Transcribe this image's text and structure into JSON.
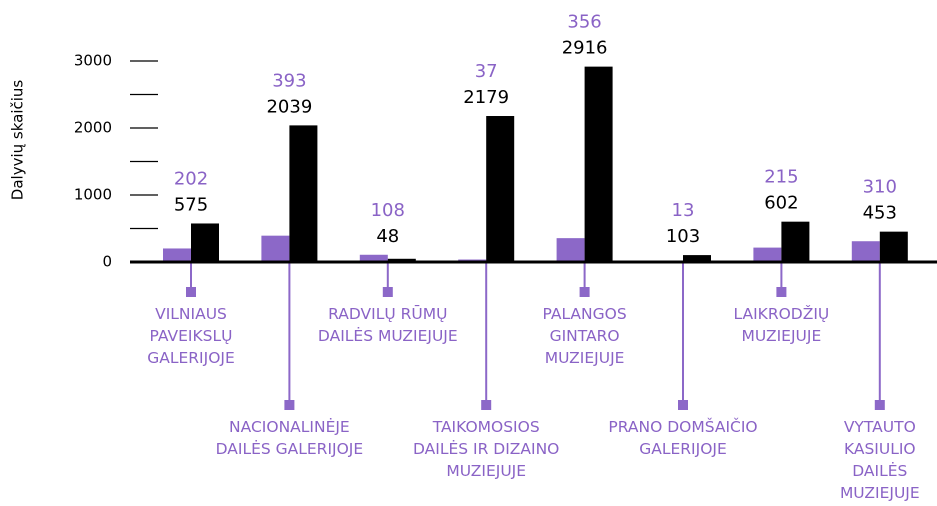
{
  "chart_data": {
    "type": "bar",
    "y_label": "Dalyvių skaičius",
    "categories": [
      "VILNIAUS PAVEIKSLŲ GALERIJOJE",
      "NACIONALINĖJE DAILĖS GALERIJOJE",
      "RADVILŲ RŪMŲ DAILĖS MUZIEJUJE",
      "TAIKOMOSIOS DAILĖS IR DIZAINO MUZIEJUJE",
      "PALANGOS GINTARO MUZIEJUJE",
      "PRANO DOMŠAIČIO GALERIJOJE",
      "LAIKRODŽIŲ MUZIEJUJE",
      "VYTAUTO KASIULIO DAILĖS MUZIEJUJE"
    ],
    "series": [
      {
        "color": "#8c68c8",
        "values": [
          202,
          393,
          108,
          37,
          356,
          13,
          215,
          310
        ]
      },
      {
        "color": "#000000",
        "values": [
          575,
          2039,
          48,
          2179,
          2916,
          103,
          602,
          453
        ]
      }
    ],
    "ylim": [
      0,
      3000
    ],
    "yticks": [
      0,
      1000,
      2000,
      3000
    ],
    "minor_yticks": [
      500,
      1500,
      2500
    ]
  }
}
